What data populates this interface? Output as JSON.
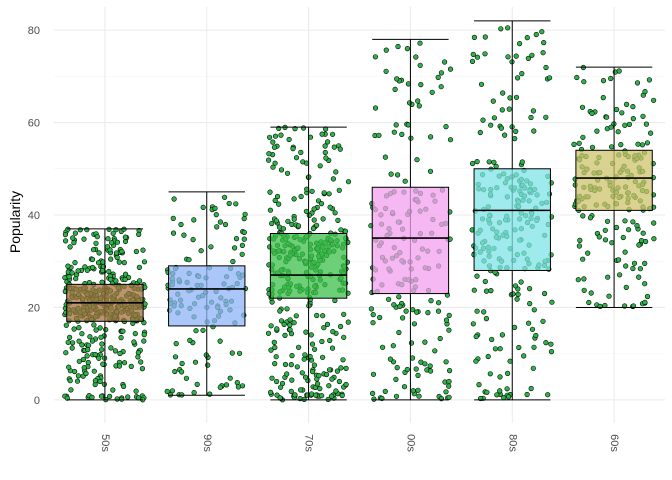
{
  "chart_data": {
    "type": "box",
    "title": "",
    "xlabel": "",
    "ylabel": "Popularity",
    "ylim": [
      -5,
      85
    ],
    "y_ticks": [
      0,
      20,
      40,
      60,
      80
    ],
    "grid": true,
    "legend": "none",
    "categories": [
      "50s",
      "90s",
      "70s",
      "00s",
      "80s",
      "60s"
    ],
    "colors": {
      "50s": "#a4713f",
      "90s": "#8fb3f5",
      "70s": "#3cbf4a",
      "00s": "#f3a0ee",
      "80s": "#7ee3e6",
      "60s": "#cdc36b",
      "points": "#2eb34a"
    },
    "boxes": [
      {
        "category": "50s",
        "whisker_low": 0,
        "q1": 17,
        "median": 21,
        "q3": 25,
        "whisker_high": 37
      },
      {
        "category": "90s",
        "whisker_low": 1,
        "q1": 16,
        "median": 24,
        "q3": 29,
        "whisker_high": 45
      },
      {
        "category": "70s",
        "whisker_low": 0,
        "q1": 22,
        "median": 27,
        "q3": 36,
        "whisker_high": 59
      },
      {
        "category": "00s",
        "whisker_low": 0,
        "q1": 23,
        "median": 35,
        "q3": 46,
        "whisker_high": 78
      },
      {
        "category": "80s",
        "whisker_low": 0,
        "q1": 28,
        "median": 41,
        "q3": 50,
        "whisker_high": 82
      },
      {
        "category": "60s",
        "whisker_low": 20,
        "q1": 41,
        "median": 48,
        "q3": 54,
        "whisker_high": 72
      }
    ],
    "points_note_counts": {
      "50s": 420,
      "90s": 130,
      "70s": 380,
      "00s": 190,
      "80s": 240,
      "60s": 190
    }
  }
}
